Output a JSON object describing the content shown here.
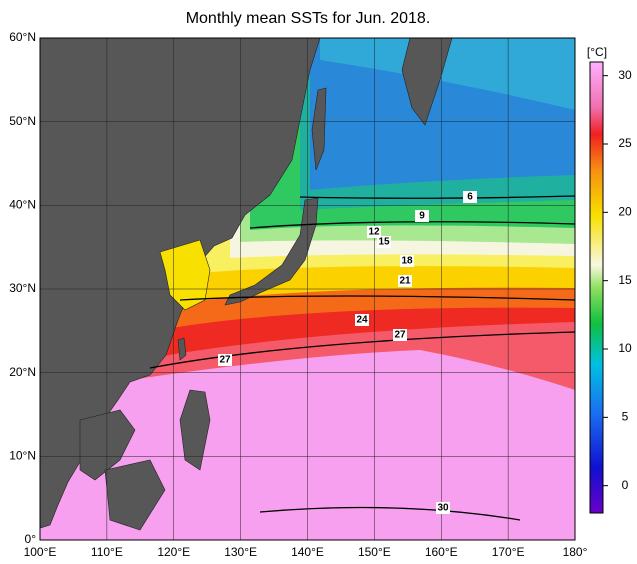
{
  "map": {
    "title": "Monthly mean SSTs for Jun. 2018.",
    "lon_labels": [
      "100°E",
      "110°E",
      "120°E",
      "130°E",
      "140°E",
      "150°E",
      "160°E",
      "170°E",
      "180°"
    ],
    "lat_labels": [
      "0°",
      "10°N",
      "20°N",
      "30°N",
      "40°N",
      "50°N",
      "60°N"
    ],
    "contour_labels": [
      6,
      9,
      12,
      15,
      18,
      21,
      24,
      27,
      27,
      30
    ],
    "colorbar": {
      "label": "[°C]",
      "range": [
        -2,
        31
      ],
      "ticks": [
        0,
        5,
        10,
        15,
        20,
        25,
        30
      ]
    }
  }
}
